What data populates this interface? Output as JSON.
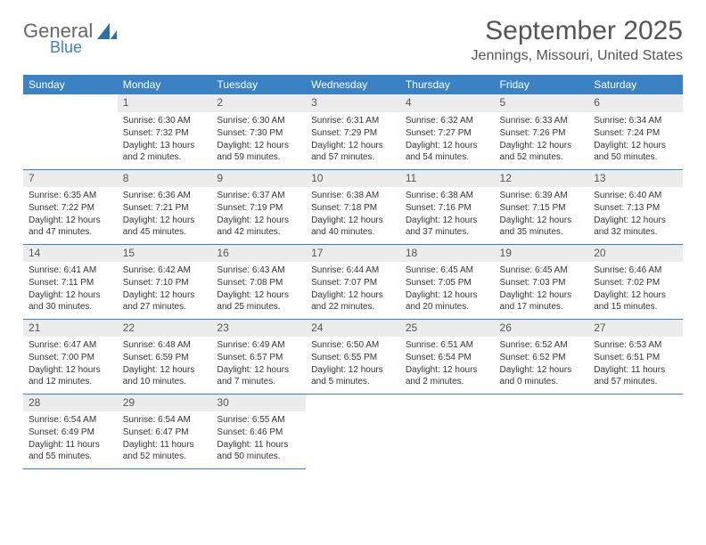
{
  "logo": {
    "general": "General",
    "blue": "Blue"
  },
  "title": "September 2025",
  "location": "Jennings, Missouri, United States",
  "headers": [
    "Sunday",
    "Monday",
    "Tuesday",
    "Wednesday",
    "Thursday",
    "Friday",
    "Saturday"
  ],
  "colors": {
    "header_bg": "#3b82c4",
    "header_text": "#ffffff",
    "daynum_bg": "#ececec",
    "body_text": "#333333",
    "border": "#3b82c4"
  },
  "weeks": [
    [
      null,
      {
        "n": "1",
        "sunrise": "Sunrise: 6:30 AM",
        "sunset": "Sunset: 7:32 PM",
        "daylight": "Daylight: 13 hours and 2 minutes."
      },
      {
        "n": "2",
        "sunrise": "Sunrise: 6:30 AM",
        "sunset": "Sunset: 7:30 PM",
        "daylight": "Daylight: 12 hours and 59 minutes."
      },
      {
        "n": "3",
        "sunrise": "Sunrise: 6:31 AM",
        "sunset": "Sunset: 7:29 PM",
        "daylight": "Daylight: 12 hours and 57 minutes."
      },
      {
        "n": "4",
        "sunrise": "Sunrise: 6:32 AM",
        "sunset": "Sunset: 7:27 PM",
        "daylight": "Daylight: 12 hours and 54 minutes."
      },
      {
        "n": "5",
        "sunrise": "Sunrise: 6:33 AM",
        "sunset": "Sunset: 7:26 PM",
        "daylight": "Daylight: 12 hours and 52 minutes."
      },
      {
        "n": "6",
        "sunrise": "Sunrise: 6:34 AM",
        "sunset": "Sunset: 7:24 PM",
        "daylight": "Daylight: 12 hours and 50 minutes."
      }
    ],
    [
      {
        "n": "7",
        "sunrise": "Sunrise: 6:35 AM",
        "sunset": "Sunset: 7:22 PM",
        "daylight": "Daylight: 12 hours and 47 minutes."
      },
      {
        "n": "8",
        "sunrise": "Sunrise: 6:36 AM",
        "sunset": "Sunset: 7:21 PM",
        "daylight": "Daylight: 12 hours and 45 minutes."
      },
      {
        "n": "9",
        "sunrise": "Sunrise: 6:37 AM",
        "sunset": "Sunset: 7:19 PM",
        "daylight": "Daylight: 12 hours and 42 minutes."
      },
      {
        "n": "10",
        "sunrise": "Sunrise: 6:38 AM",
        "sunset": "Sunset: 7:18 PM",
        "daylight": "Daylight: 12 hours and 40 minutes."
      },
      {
        "n": "11",
        "sunrise": "Sunrise: 6:38 AM",
        "sunset": "Sunset: 7:16 PM",
        "daylight": "Daylight: 12 hours and 37 minutes."
      },
      {
        "n": "12",
        "sunrise": "Sunrise: 6:39 AM",
        "sunset": "Sunset: 7:15 PM",
        "daylight": "Daylight: 12 hours and 35 minutes."
      },
      {
        "n": "13",
        "sunrise": "Sunrise: 6:40 AM",
        "sunset": "Sunset: 7:13 PM",
        "daylight": "Daylight: 12 hours and 32 minutes."
      }
    ],
    [
      {
        "n": "14",
        "sunrise": "Sunrise: 6:41 AM",
        "sunset": "Sunset: 7:11 PM",
        "daylight": "Daylight: 12 hours and 30 minutes."
      },
      {
        "n": "15",
        "sunrise": "Sunrise: 6:42 AM",
        "sunset": "Sunset: 7:10 PM",
        "daylight": "Daylight: 12 hours and 27 minutes."
      },
      {
        "n": "16",
        "sunrise": "Sunrise: 6:43 AM",
        "sunset": "Sunset: 7:08 PM",
        "daylight": "Daylight: 12 hours and 25 minutes."
      },
      {
        "n": "17",
        "sunrise": "Sunrise: 6:44 AM",
        "sunset": "Sunset: 7:07 PM",
        "daylight": "Daylight: 12 hours and 22 minutes."
      },
      {
        "n": "18",
        "sunrise": "Sunrise: 6:45 AM",
        "sunset": "Sunset: 7:05 PM",
        "daylight": "Daylight: 12 hours and 20 minutes."
      },
      {
        "n": "19",
        "sunrise": "Sunrise: 6:45 AM",
        "sunset": "Sunset: 7:03 PM",
        "daylight": "Daylight: 12 hours and 17 minutes."
      },
      {
        "n": "20",
        "sunrise": "Sunrise: 6:46 AM",
        "sunset": "Sunset: 7:02 PM",
        "daylight": "Daylight: 12 hours and 15 minutes."
      }
    ],
    [
      {
        "n": "21",
        "sunrise": "Sunrise: 6:47 AM",
        "sunset": "Sunset: 7:00 PM",
        "daylight": "Daylight: 12 hours and 12 minutes."
      },
      {
        "n": "22",
        "sunrise": "Sunrise: 6:48 AM",
        "sunset": "Sunset: 6:59 PM",
        "daylight": "Daylight: 12 hours and 10 minutes."
      },
      {
        "n": "23",
        "sunrise": "Sunrise: 6:49 AM",
        "sunset": "Sunset: 6:57 PM",
        "daylight": "Daylight: 12 hours and 7 minutes."
      },
      {
        "n": "24",
        "sunrise": "Sunrise: 6:50 AM",
        "sunset": "Sunset: 6:55 PM",
        "daylight": "Daylight: 12 hours and 5 minutes."
      },
      {
        "n": "25",
        "sunrise": "Sunrise: 6:51 AM",
        "sunset": "Sunset: 6:54 PM",
        "daylight": "Daylight: 12 hours and 2 minutes."
      },
      {
        "n": "26",
        "sunrise": "Sunrise: 6:52 AM",
        "sunset": "Sunset: 6:52 PM",
        "daylight": "Daylight: 12 hours and 0 minutes."
      },
      {
        "n": "27",
        "sunrise": "Sunrise: 6:53 AM",
        "sunset": "Sunset: 6:51 PM",
        "daylight": "Daylight: 11 hours and 57 minutes."
      }
    ],
    [
      {
        "n": "28",
        "sunrise": "Sunrise: 6:54 AM",
        "sunset": "Sunset: 6:49 PM",
        "daylight": "Daylight: 11 hours and 55 minutes."
      },
      {
        "n": "29",
        "sunrise": "Sunrise: 6:54 AM",
        "sunset": "Sunset: 6:47 PM",
        "daylight": "Daylight: 11 hours and 52 minutes."
      },
      {
        "n": "30",
        "sunrise": "Sunrise: 6:55 AM",
        "sunset": "Sunset: 6:46 PM",
        "daylight": "Daylight: 11 hours and 50 minutes."
      },
      null,
      null,
      null,
      null
    ]
  ]
}
